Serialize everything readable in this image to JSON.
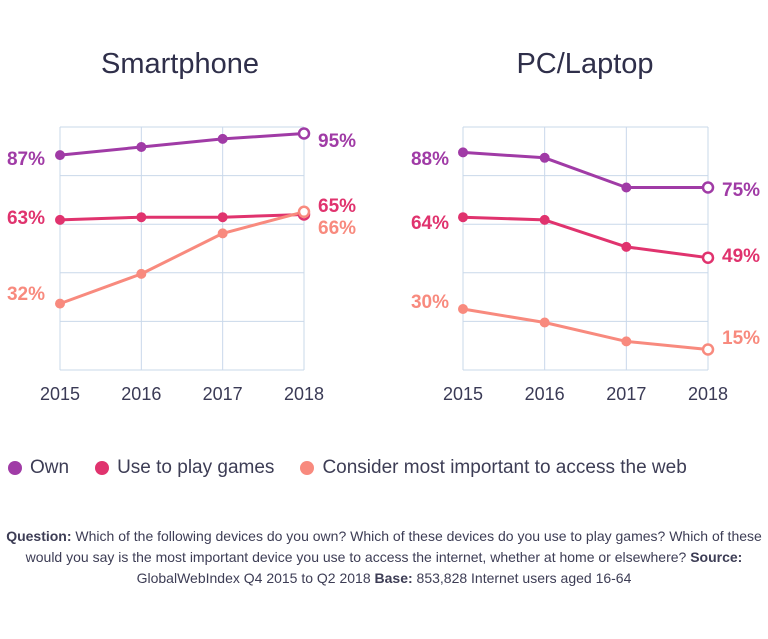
{
  "chart_data": [
    {
      "type": "line",
      "title": "Smartphone",
      "x": [
        "2015",
        "2016",
        "2017",
        "2018"
      ],
      "ylim": [
        0,
        100
      ],
      "grid": true,
      "series": [
        {
          "name": "Own",
          "color": "#a03ba6",
          "values": [
            87,
            90,
            93,
            95
          ],
          "start_label": "87%",
          "end_label": "95%"
        },
        {
          "name": "Use to play games",
          "color": "#e0336e",
          "values": [
            63,
            64,
            64,
            65
          ],
          "start_label": "63%",
          "end_label": "65%"
        },
        {
          "name": "Consider most important to access the web",
          "color": "#f88a7e",
          "values": [
            32,
            43,
            58,
            66
          ],
          "start_label": "32%",
          "end_label": "66%"
        }
      ]
    },
    {
      "type": "line",
      "title": "PC/Laptop",
      "x": [
        "2015",
        "2016",
        "2017",
        "2018"
      ],
      "ylim": [
        0,
        100
      ],
      "grid": true,
      "series": [
        {
          "name": "Own",
          "color": "#a03ba6",
          "values": [
            88,
            86,
            75,
            75
          ],
          "start_label": "88%",
          "end_label": "75%"
        },
        {
          "name": "Use to play games",
          "color": "#e0336e",
          "values": [
            64,
            63,
            53,
            49
          ],
          "start_label": "64%",
          "end_label": "49%"
        },
        {
          "name": "Consider most important to access the web",
          "color": "#f88a7e",
          "values": [
            30,
            25,
            18,
            15
          ],
          "start_label": "30%",
          "end_label": "15%"
        }
      ]
    }
  ],
  "legend": {
    "placement": "bottom",
    "items": [
      {
        "label": "Own",
        "color": "#a03ba6"
      },
      {
        "label": "Use to play games",
        "color": "#e0336e"
      },
      {
        "label": "Consider most important to access the web",
        "color": "#f88a7e"
      }
    ]
  },
  "footnote": {
    "question_label": "Question:",
    "question_text": "Which of the following devices do you own? Which of these devices do you use to play games? Which of these would you say is the most important device you use to access the internet, whether at home or elsewhere?",
    "source_label": "Source:",
    "source_text": "GlobalWebIndex Q4 2015 to Q2 2018",
    "base_label": "Base:",
    "base_text": "853,828 Internet users aged 16-64"
  }
}
